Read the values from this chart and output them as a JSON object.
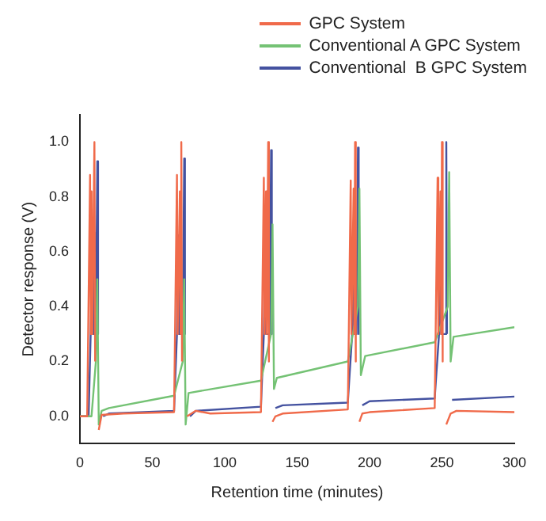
{
  "chart_data": {
    "type": "line",
    "xlabel": "Retention time (minutes)",
    "ylabel": "Detector response (V)",
    "xlim": [
      0,
      300
    ],
    "xticks": [
      0,
      50,
      100,
      150,
      200,
      250,
      300
    ],
    "ylim": [
      -0.1,
      1.1
    ],
    "yticks": [
      {
        "value": 0,
        "label": "0.0"
      },
      0.2,
      0.4,
      0.6,
      0.8,
      {
        "value": 1,
        "label": "1.0"
      }
    ],
    "legend": "top right",
    "grid": false,
    "series": [
      {
        "name": "GPC System",
        "color": "#f06a4a",
        "x": [
          0,
          5,
          7,
          7.5,
          8,
          8.5,
          10,
          10.5,
          11,
          13,
          15,
          30,
          65,
          67,
          67.5,
          69,
          69.5,
          70,
          70.5,
          71,
          74,
          80,
          90,
          125,
          127,
          127.5,
          128.5,
          129,
          130,
          130.5,
          131,
          133,
          135,
          140,
          185,
          187,
          187.5,
          189,
          189.5,
          190,
          190.5,
          191,
          193,
          195,
          200,
          245,
          247,
          247.5,
          249,
          249.5,
          250,
          250.5,
          251,
          253,
          256,
          260,
          300
        ],
        "values": [
          0,
          0,
          0.88,
          0.3,
          0.82,
          0.3,
          1.0,
          0.2,
          null,
          -0.05,
          0.005,
          0.01,
          0.015,
          0.88,
          0.3,
          0.82,
          0.3,
          1.0,
          0.2,
          null,
          0.0,
          0.02,
          0.01,
          0.015,
          0.87,
          0.3,
          0.82,
          0.3,
          1.0,
          0.2,
          null,
          -0.02,
          0.0,
          0.01,
          0.025,
          0.86,
          0.3,
          0.83,
          0.3,
          1.0,
          0.2,
          null,
          -0.02,
          0.01,
          0.015,
          0.03,
          0.87,
          0.3,
          0.82,
          0.3,
          1.0,
          0.2,
          null,
          -0.03,
          0.01,
          0.02,
          0.015
        ]
      },
      {
        "name": "Conventional A GPC System",
        "color": "#74c274",
        "x": [
          0,
          8,
          11,
          12,
          13,
          15,
          20,
          65,
          71,
          72,
          73,
          75,
          125,
          132,
          133,
          134,
          136,
          185,
          192,
          193,
          194,
          197,
          245,
          254,
          255,
          256,
          258,
          300
        ],
        "values": [
          0,
          0,
          0.2,
          0.5,
          -0.03,
          0.02,
          0.03,
          0.075,
          0.2,
          0.5,
          -0.03,
          0.085,
          0.13,
          0.3,
          0.7,
          0.1,
          0.14,
          0.2,
          0.4,
          0.83,
          0.15,
          0.22,
          0.27,
          0.4,
          0.89,
          0.2,
          0.29,
          0.325
        ]
      },
      {
        "name": "Conventional  B GPC System",
        "color": "#4452a0",
        "x": [
          0,
          6,
          9,
          9.5,
          10,
          11,
          12,
          12.5,
          13,
          16,
          20,
          65,
          67,
          68,
          68.5,
          71,
          72,
          72.5,
          73,
          76,
          80,
          125,
          127,
          128,
          128.5,
          131,
          132,
          132.5,
          133,
          135,
          140,
          185,
          188,
          189,
          189.5,
          191,
          192,
          192.5,
          193,
          195,
          200,
          245,
          248,
          249,
          249.5,
          252,
          253,
          253.5,
          254,
          257,
          300
        ],
        "values": [
          0,
          0,
          0.64,
          0.3,
          0.67,
          0.3,
          0.93,
          0.3,
          null,
          0.0,
          0.01,
          0.02,
          0.3,
          0.66,
          0.3,
          0.3,
          0.94,
          0.3,
          null,
          0.0,
          0.02,
          0.035,
          0.3,
          0.7,
          0.3,
          0.3,
          0.97,
          0.3,
          null,
          0.03,
          0.04,
          0.05,
          0.3,
          0.7,
          0.3,
          0.3,
          0.98,
          0.3,
          null,
          0.04,
          0.055,
          0.065,
          0.3,
          0.69,
          0.3,
          0.3,
          1.0,
          0.3,
          null,
          0.06,
          0.072
        ]
      }
    ]
  }
}
